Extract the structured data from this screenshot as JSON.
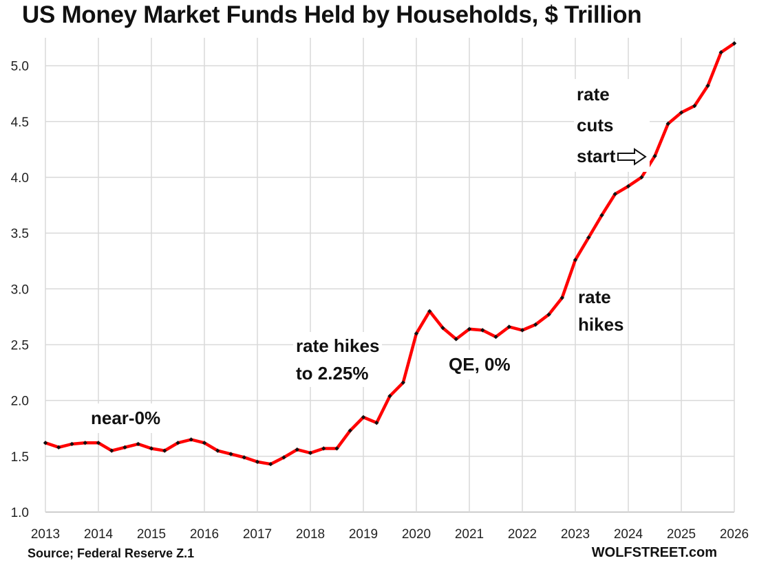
{
  "chart_data": {
    "type": "line",
    "title": "US Money Market Funds Held by Households, $ Trillion",
    "xlabel": "",
    "ylabel": "",
    "xlim": [
      2013,
      2026
    ],
    "ylim": [
      1.0,
      5.25
    ],
    "x_ticks": [
      "2013",
      "2014",
      "2015",
      "2016",
      "2017",
      "2018",
      "2019",
      "2020",
      "2021",
      "2022",
      "2023",
      "2024",
      "2025",
      "2026"
    ],
    "y_ticks": [
      "1.0",
      "1.5",
      "2.0",
      "2.5",
      "3.0",
      "3.5",
      "4.0",
      "4.5",
      "5.0"
    ],
    "grid": true,
    "line_color": "#ff0000",
    "marker_color": "#111111",
    "series": [
      {
        "x": [
          2013.0,
          2013.25,
          2013.5,
          2013.75,
          2014.0,
          2014.25,
          2014.5,
          2014.75,
          2015.0,
          2015.25,
          2015.5,
          2015.75,
          2016.0,
          2016.25,
          2016.5,
          2016.75,
          2017.0,
          2017.25,
          2017.5,
          2017.75,
          2018.0,
          2018.25,
          2018.5,
          2018.75,
          2019.0,
          2019.25,
          2019.5,
          2019.75,
          2020.0,
          2020.25,
          2020.5,
          2020.75,
          2021.0,
          2021.25,
          2021.5,
          2021.75,
          2022.0,
          2022.25,
          2022.5,
          2022.75,
          2023.0,
          2023.25,
          2023.5,
          2023.75,
          2024.0,
          2024.25,
          2024.5,
          2024.75,
          2025.0,
          2025.25,
          2025.5,
          2025.75,
          2026.0
        ],
        "values": [
          1.62,
          1.58,
          1.61,
          1.62,
          1.62,
          1.55,
          1.58,
          1.61,
          1.57,
          1.55,
          1.62,
          1.65,
          1.62,
          1.55,
          1.52,
          1.49,
          1.45,
          1.43,
          1.49,
          1.56,
          1.53,
          1.57,
          1.57,
          1.73,
          1.85,
          1.8,
          2.04,
          2.16,
          2.6,
          2.8,
          2.65,
          2.55,
          2.64,
          2.63,
          2.57,
          2.66,
          2.63,
          2.68,
          2.77,
          2.92,
          3.26,
          3.46,
          3.66,
          3.85,
          3.92,
          4.0,
          4.19,
          4.48,
          4.58,
          4.64,
          4.82,
          5.12,
          5.2
        ]
      }
    ],
    "annotations": {
      "near_zero": "near-0%",
      "hikes_2018_line1": "rate hikes",
      "hikes_2018_line2": "to 2.25%",
      "qe": "QE, 0%",
      "hikes_2022_line1": "rate",
      "hikes_2022_line2": "hikes",
      "cuts_line1": "rate",
      "cuts_line2": "cuts",
      "cuts_line3": "start",
      "cuts_arrow": "right-arrow-icon"
    }
  },
  "footer": {
    "source": "Source; Federal Reserve Z.1",
    "brand": "WOLFSTREET.com"
  }
}
